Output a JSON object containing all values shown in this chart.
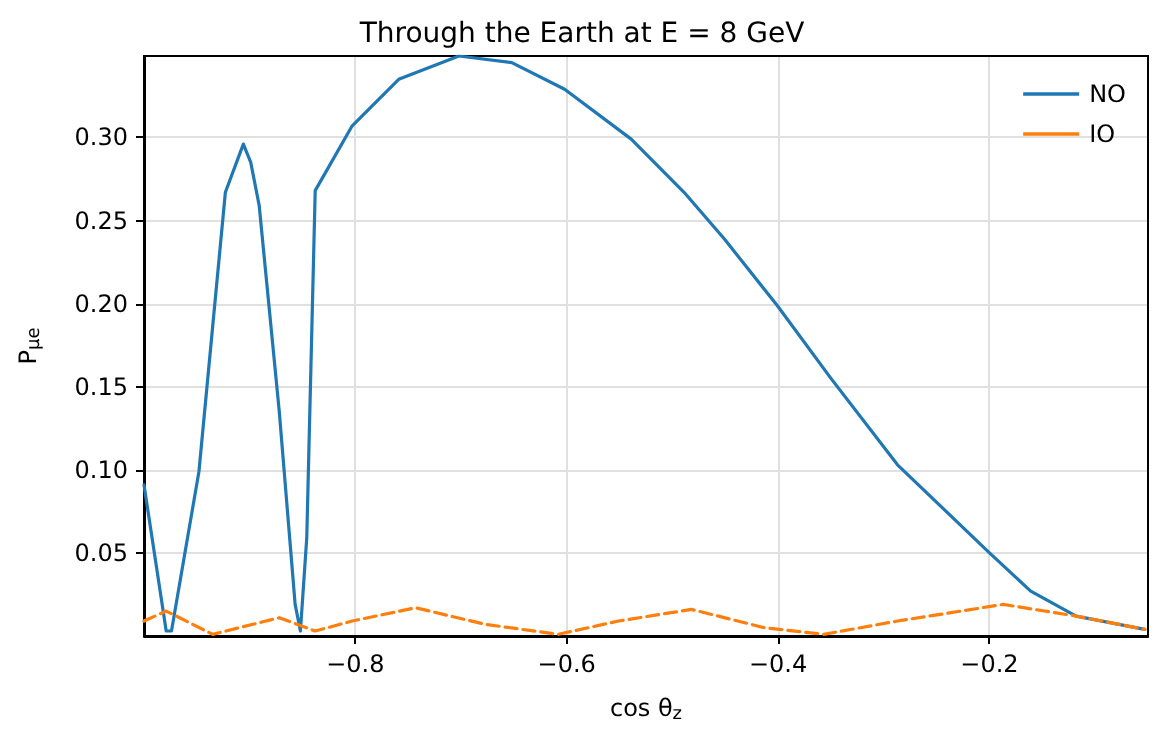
{
  "chart_data": {
    "type": "line",
    "title": "Through the Earth at E = 8 GeV",
    "xlabel": "cos θ$_{z}$",
    "ylabel": "P$_{μe}$",
    "xlim": [
      -1,
      -0.05
    ],
    "ylim": [
      0,
      0.349
    ],
    "xticks": [
      -0.8,
      -0.6,
      -0.4,
      -0.2
    ],
    "yticks": [
      0.05,
      {
        "value": 0.1,
        "label": "0.10"
      },
      0.15,
      {
        "value": 0.2,
        "label": "0.20"
      },
      0.25,
      {
        "value": 0.3,
        "label": "0.30"
      }
    ],
    "grid": true,
    "legend": "top right",
    "marker": "none",
    "series": [
      {
        "name": "NO",
        "color": "#1f77b4",
        "line_style": "solid",
        "x": [
          -1,
          -0.979,
          -0.974,
          -0.948,
          -0.923,
          -0.906,
          -0.899,
          -0.891,
          -0.872,
          -0.857,
          -0.852,
          -0.846,
          -0.838,
          -0.803,
          -0.759,
          -0.702,
          -0.652,
          -0.602,
          -0.539,
          -0.489,
          -0.451,
          -0.401,
          -0.35,
          -0.287,
          -0.2,
          -0.161,
          -0.118,
          -0.053
        ],
        "values": [
          0.091,
          0.003,
          0.003,
          0.099,
          0.267,
          0.296,
          0.285,
          0.259,
          0.135,
          0.019,
          0.003,
          0.059,
          0.268,
          0.307,
          0.335,
          0.349,
          0.345,
          0.329,
          0.299,
          0.267,
          0.239,
          0.199,
          0.155,
          0.103,
          0.05,
          0.027,
          0.012,
          0.004
        ]
      },
      {
        "name": "IO",
        "color": "#ff7f0e",
        "line_style": "dashed",
        "x": [
          -1,
          -0.979,
          -0.935,
          -0.872,
          -0.838,
          -0.803,
          -0.743,
          -0.677,
          -0.608,
          -0.551,
          -0.482,
          -0.413,
          -0.357,
          -0.287,
          -0.187,
          -0.118,
          -0.053
        ],
        "values": [
          0.009,
          0.015,
          0.001,
          0.011,
          0.003,
          0.009,
          0.017,
          0.007,
          0.001,
          0.009,
          0.016,
          0.005,
          0.001,
          0.009,
          0.019,
          0.012,
          0.004
        ]
      }
    ]
  }
}
